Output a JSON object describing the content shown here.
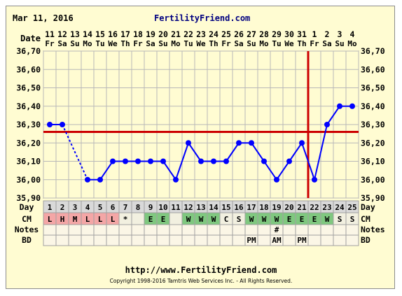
{
  "header": {
    "date": "Mar 11, 2016",
    "site": "FertilityFriend.com"
  },
  "footer": {
    "url": "http://www.FertilityFriend.com",
    "copyright": "Copyright 1998-2016 Tamtris Web Services Inc. - All Rights Reserved."
  },
  "row_labels": {
    "date": "Date",
    "day": "Day",
    "cm": "CM",
    "notes": "Notes",
    "bd": "BD"
  },
  "chart_data": {
    "type": "line",
    "title": "",
    "xlabel": "Date",
    "ylabel": "",
    "ylim": [
      35.9,
      36.7
    ],
    "yticks": [
      "35,90",
      "36,00",
      "36,10",
      "36,20",
      "36,30",
      "36,40",
      "36,50",
      "36,60",
      "36,70"
    ],
    "grid": true,
    "dates": [
      "11",
      "12",
      "13",
      "14",
      "15",
      "16",
      "17",
      "18",
      "19",
      "20",
      "21",
      "22",
      "23",
      "24",
      "25",
      "26",
      "27",
      "28",
      "29",
      "30",
      "31",
      "1",
      "2",
      "3",
      "4"
    ],
    "weekdays": [
      "Fr",
      "Sa",
      "Su",
      "Mo",
      "Tu",
      "We",
      "Th",
      "Fr",
      "Sa",
      "Su",
      "Mo",
      "Tu",
      "We",
      "Th",
      "Fr",
      "Sa",
      "Su",
      "Mo",
      "Tu",
      "We",
      "Th",
      "Fr",
      "Sa",
      "Su",
      "Mo"
    ],
    "cycle_days": [
      "1",
      "2",
      "3",
      "4",
      "5",
      "6",
      "7",
      "8",
      "9",
      "10",
      "11",
      "12",
      "13",
      "14",
      "15",
      "16",
      "17",
      "18",
      "19",
      "20",
      "21",
      "22",
      "23",
      "24",
      "25"
    ],
    "series": [
      {
        "values": [
          36.3,
          36.3,
          null,
          36.0,
          36.0,
          36.1,
          36.1,
          36.1,
          36.1,
          36.1,
          36.0,
          36.2,
          36.1,
          36.1,
          36.1,
          36.2,
          36.2,
          36.1,
          36.0,
          36.1,
          36.2,
          36.0,
          36.3,
          36.4,
          36.4
        ],
        "color": "#0000ff",
        "dashed_segments": [
          [
            2,
            4
          ]
        ]
      }
    ],
    "coverline": 36.26,
    "coverline_color": "#cc0000",
    "ovulation_day": 22,
    "ovulation_color": "#cc0000",
    "cm": [
      "L",
      "H",
      "M",
      "L",
      "L",
      "L",
      "*",
      "",
      "E",
      "E",
      "",
      "W",
      "W",
      "W",
      "C",
      "S",
      "W",
      "W",
      "W",
      "E",
      "E",
      "E",
      "W",
      "S",
      "S"
    ],
    "cm_colors": {
      "L": "#f4a6a6",
      "H": "#f4a6a6",
      "M": "#f4a6a6",
      "E": "#7fc87f",
      "W": "#7fc87f",
      "S": "#f2f0e0",
      "C": "#f2f0e0",
      "*": "#f2f0e0",
      "": "#f2f0e0"
    },
    "notes": [
      "",
      "",
      "",
      "",
      "",
      "",
      "",
      "",
      "",
      "",
      "",
      "",
      "",
      "",
      "",
      "",
      "",
      "",
      "#",
      "",
      "",
      "",
      "",
      "",
      ""
    ],
    "bd": [
      "",
      "",
      "",
      "",
      "",
      "",
      "",
      "",
      "",
      "",
      "",
      "",
      "",
      "",
      "",
      "",
      "PM",
      "",
      "AM",
      "",
      "PM",
      "",
      "",
      "",
      ""
    ]
  }
}
